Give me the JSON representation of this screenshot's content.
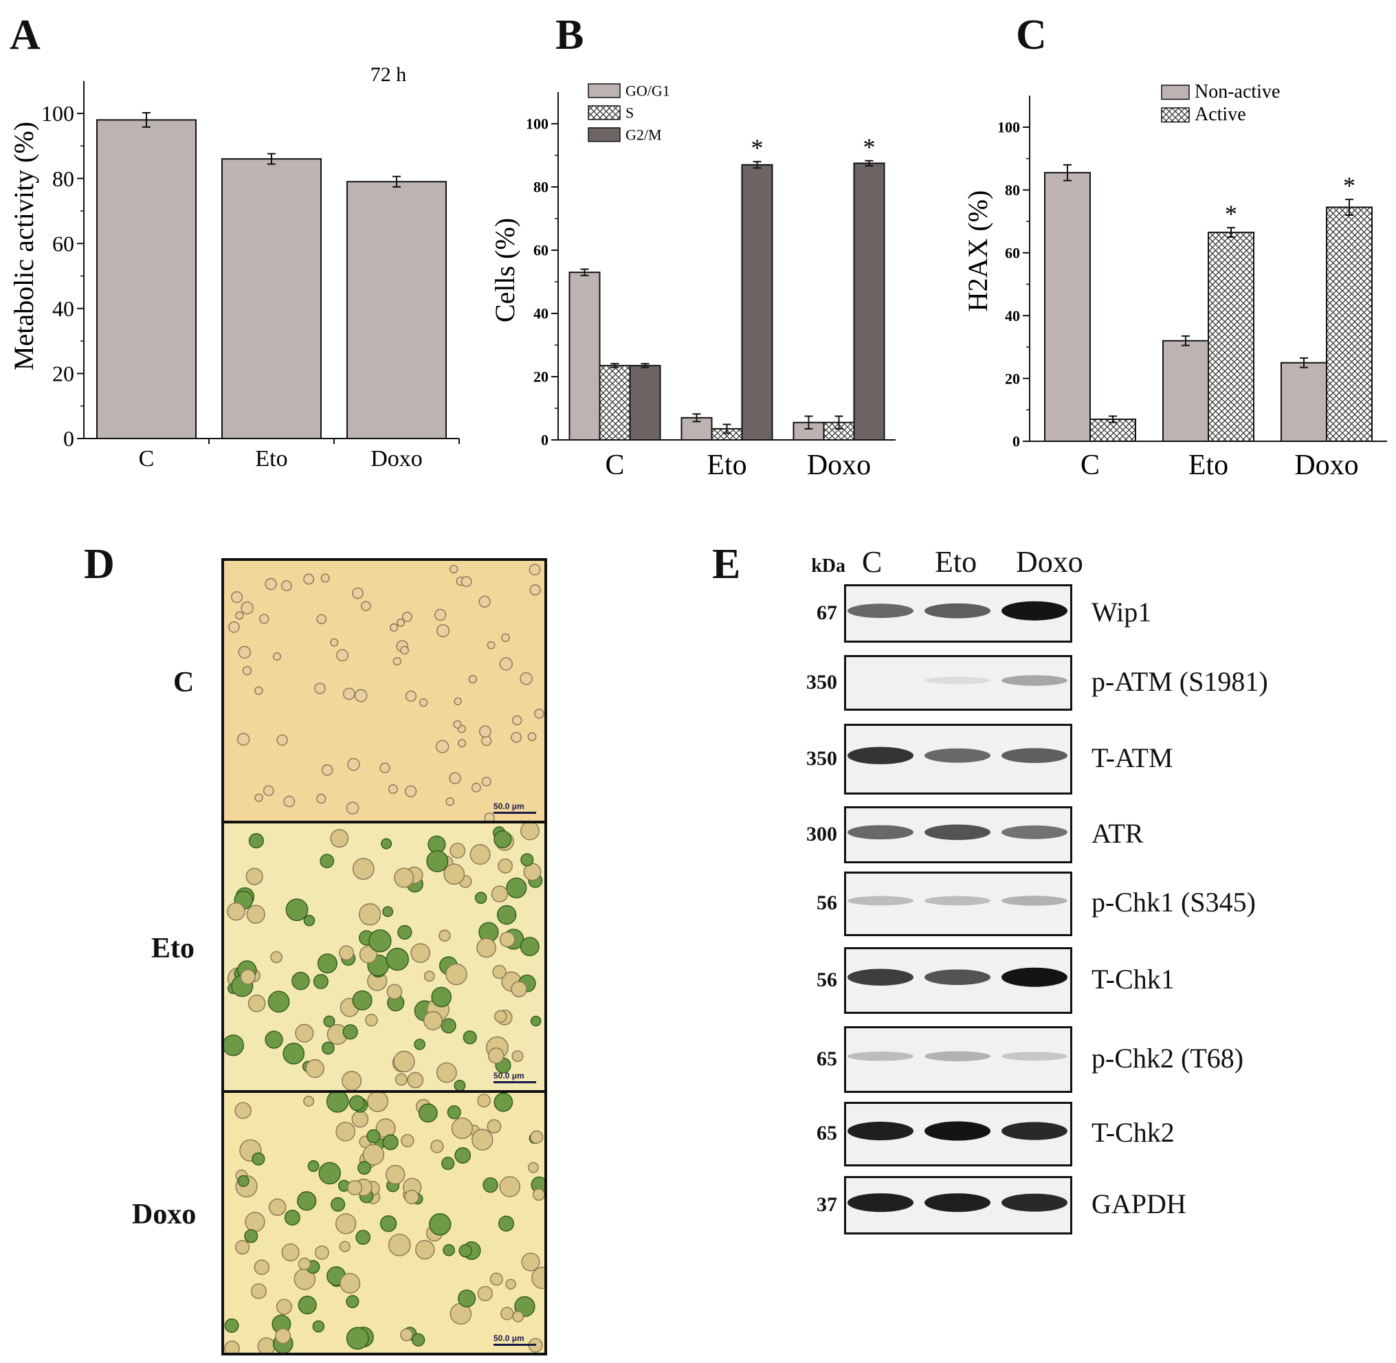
{
  "chart_data": [
    {
      "panel": "A",
      "type": "bar",
      "title": "72 h",
      "ylabel": "Metabolic activity (%)",
      "xlabel": "",
      "ylim": [
        0,
        110
      ],
      "yticks": [
        0,
        20,
        40,
        60,
        80,
        100
      ],
      "categories": [
        "C",
        "Eto",
        "Doxo"
      ],
      "values": [
        98,
        86,
        79
      ],
      "errors": [
        2.2,
        1.6,
        1.6
      ]
    },
    {
      "panel": "B",
      "type": "bar",
      "ylabel": "Cells (%)",
      "xlabel": "",
      "ylim": [
        0,
        110
      ],
      "yticks": [
        0,
        20,
        40,
        60,
        80,
        100
      ],
      "categories": [
        "C",
        "Eto",
        "Doxo"
      ],
      "legend_position": "top-left",
      "series": [
        {
          "name": "GO/G1",
          "values": [
            53,
            7,
            5.5
          ],
          "errors": [
            1,
            1.2,
            2
          ],
          "fill": "#bdb4b2"
        },
        {
          "name": "S",
          "values": [
            23.5,
            3.5,
            5.5
          ],
          "errors": [
            0.6,
            1.4,
            2
          ],
          "fill": "hatch"
        },
        {
          "name": "G2/M",
          "values": [
            23.5,
            87,
            87.5
          ],
          "errors": [
            0.6,
            1,
            0.8
          ],
          "fill": "#6d6564"
        }
      ],
      "annotations": [
        {
          "category": "Eto",
          "series": "G2/M",
          "text": "*"
        },
        {
          "category": "Doxo",
          "series": "G2/M",
          "text": "*"
        }
      ]
    },
    {
      "panel": "C",
      "type": "bar",
      "ylabel": "H2AX (%)",
      "xlabel": "",
      "ylim": [
        0,
        110
      ],
      "yticks": [
        0,
        20,
        40,
        60,
        80,
        100
      ],
      "categories": [
        "C",
        "Eto",
        "Doxo"
      ],
      "legend_position": "top-right",
      "series": [
        {
          "name": "Non-active",
          "values": [
            85.5,
            32,
            25
          ],
          "errors": [
            2.5,
            1.5,
            1.5
          ],
          "fill": "#bdb4b2"
        },
        {
          "name": "Active",
          "values": [
            7,
            66.5,
            74.5
          ],
          "errors": [
            1,
            1.5,
            2.5
          ],
          "fill": "hatch"
        }
      ],
      "annotations": [
        {
          "category": "Eto",
          "series": "Active",
          "text": "*"
        },
        {
          "category": "Doxo",
          "series": "Active",
          "text": "*"
        }
      ]
    }
  ],
  "panels": {
    "A": "A",
    "B": "B",
    "C": "C",
    "D": "D",
    "E": "E"
  },
  "panel_d": {
    "rows": [
      {
        "label": "C",
        "scale": "50.0 μm",
        "tint": "#f2d79a"
      },
      {
        "label": "Eto",
        "scale": "50.0 μm",
        "tint": "#f3e7b2"
      },
      {
        "label": "Doxo",
        "scale": "50.0 μm",
        "tint": "#f4e6a9"
      }
    ]
  },
  "panel_e": {
    "unit_label": "kDa",
    "lanes": [
      "C",
      "Eto",
      "Doxo"
    ],
    "blots": [
      {
        "kda": "67",
        "protein": "Wip1",
        "intensity": [
          0.6,
          0.65,
          1.0
        ]
      },
      {
        "kda": "350",
        "protein": "p-ATM (S1981)",
        "intensity": [
          0.0,
          0.05,
          0.3
        ]
      },
      {
        "kda": "350",
        "protein": "T-ATM",
        "intensity": [
          0.85,
          0.6,
          0.65
        ]
      },
      {
        "kda": "300",
        "protein": "ATR",
        "intensity": [
          0.6,
          0.7,
          0.55
        ]
      },
      {
        "kda": "56",
        "protein": "p-Chk1 (S345)",
        "intensity": [
          0.2,
          0.2,
          0.25
        ]
      },
      {
        "kda": "56",
        "protein": "T-Chk1",
        "intensity": [
          0.8,
          0.7,
          1.0
        ]
      },
      {
        "kda": "65",
        "protein": "p-Chk2 (T68)",
        "intensity": [
          0.2,
          0.25,
          0.15
        ]
      },
      {
        "kda": "65",
        "protein": "T-Chk2",
        "intensity": [
          0.95,
          1.0,
          0.9
        ]
      },
      {
        "kda": "37",
        "protein": "GAPDH",
        "intensity": [
          0.95,
          0.95,
          0.9
        ]
      }
    ]
  }
}
